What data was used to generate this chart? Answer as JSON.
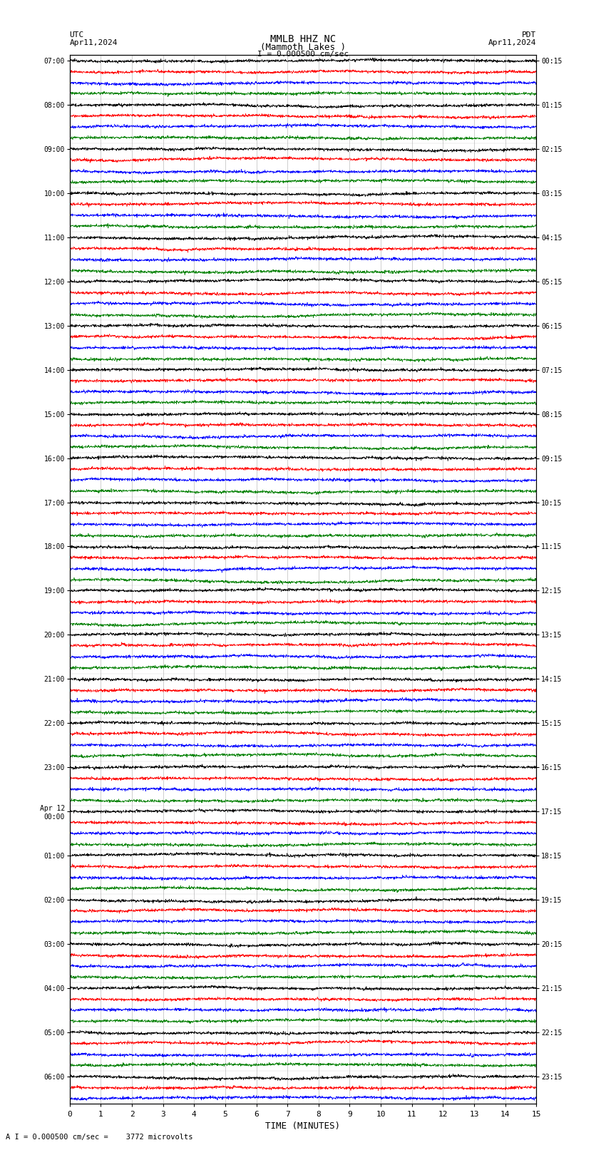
{
  "title_line1": "MMLB HHZ NC",
  "title_line2": "(Mammoth Lakes )",
  "scale_bar_text": "I = 0.000500 cm/sec",
  "bottom_annotation": "A I = 0.000500 cm/sec =    3772 microvolts",
  "left_header": "UTC",
  "left_date": "Apr11,2024",
  "right_header": "PDT",
  "right_date": "Apr11,2024",
  "xlabel": "TIME (MINUTES)",
  "xmin": 0,
  "xmax": 15,
  "xticks": [
    0,
    1,
    2,
    3,
    4,
    5,
    6,
    7,
    8,
    9,
    10,
    11,
    12,
    13,
    14,
    15
  ],
  "background_color": "#ffffff",
  "trace_colors": [
    "black",
    "red",
    "blue",
    "green"
  ],
  "fig_width": 8.5,
  "fig_height": 16.13,
  "dpi": 100,
  "left_times_utc": [
    "07:00",
    "",
    "",
    "",
    "08:00",
    "",
    "",
    "",
    "09:00",
    "",
    "",
    "",
    "10:00",
    "",
    "",
    "",
    "11:00",
    "",
    "",
    "",
    "12:00",
    "",
    "",
    "",
    "13:00",
    "",
    "",
    "",
    "14:00",
    "",
    "",
    "",
    "15:00",
    "",
    "",
    "",
    "16:00",
    "",
    "",
    "",
    "17:00",
    "",
    "",
    "",
    "18:00",
    "",
    "",
    "",
    "19:00",
    "",
    "",
    "",
    "20:00",
    "",
    "",
    "",
    "21:00",
    "",
    "",
    "",
    "22:00",
    "",
    "",
    "",
    "23:00",
    "",
    "",
    "",
    "Apr 12\n00:00",
    "",
    "",
    "",
    "01:00",
    "",
    "",
    "",
    "02:00",
    "",
    "",
    "",
    "03:00",
    "",
    "",
    "",
    "04:00",
    "",
    "",
    "",
    "05:00",
    "",
    "",
    "",
    "06:00",
    "",
    ""
  ],
  "right_times_pdt": [
    "00:15",
    "",
    "",
    "",
    "01:15",
    "",
    "",
    "",
    "02:15",
    "",
    "",
    "",
    "03:15",
    "",
    "",
    "",
    "04:15",
    "",
    "",
    "",
    "05:15",
    "",
    "",
    "",
    "06:15",
    "",
    "",
    "",
    "07:15",
    "",
    "",
    "",
    "08:15",
    "",
    "",
    "",
    "09:15",
    "",
    "",
    "",
    "10:15",
    "",
    "",
    "",
    "11:15",
    "",
    "",
    "",
    "12:15",
    "",
    "",
    "",
    "13:15",
    "",
    "",
    "",
    "14:15",
    "",
    "",
    "",
    "15:15",
    "",
    "",
    "",
    "16:15",
    "",
    "",
    "",
    "17:15",
    "",
    "",
    "",
    "18:15",
    "",
    "",
    "",
    "19:15",
    "",
    "",
    "",
    "20:15",
    "",
    "",
    "",
    "21:15",
    "",
    "",
    "",
    "22:15",
    "",
    "",
    "",
    "23:15",
    "",
    ""
  ]
}
